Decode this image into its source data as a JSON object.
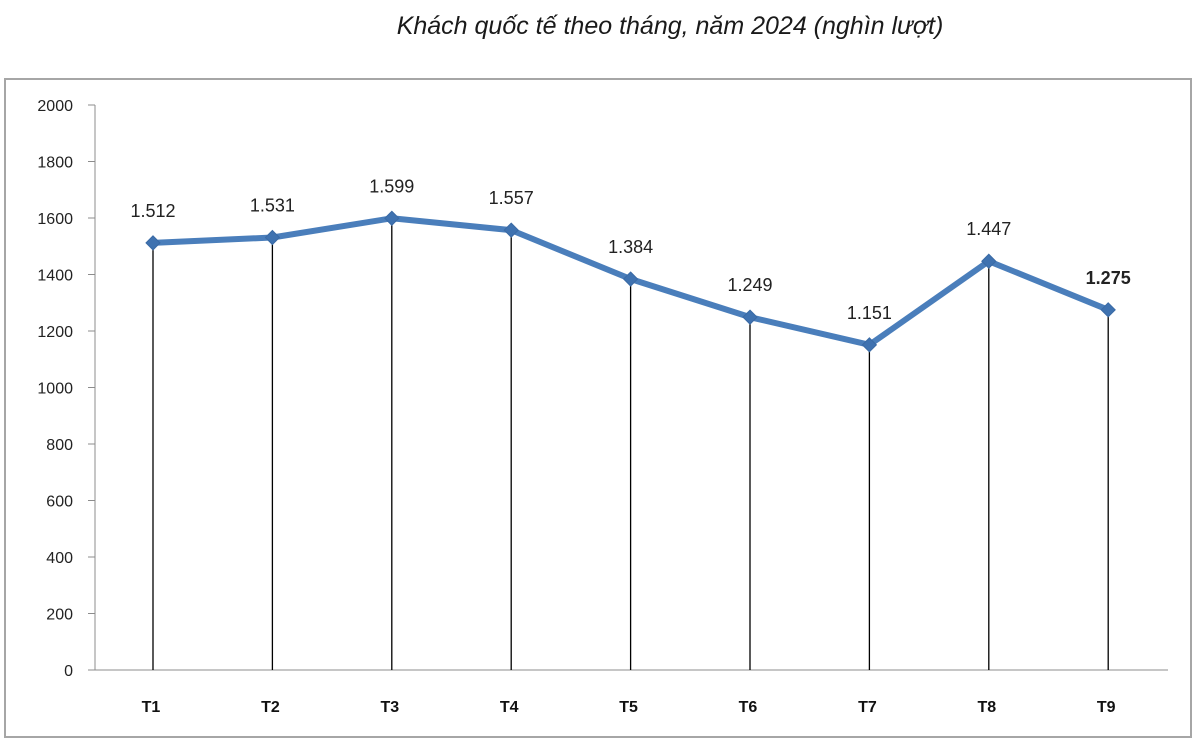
{
  "chart_data": {
    "type": "line",
    "title": "Khách quốc tế theo tháng, năm 2024 (nghìn lượt)",
    "categories": [
      "T1",
      "T2",
      "T3",
      "T4",
      "T5",
      "T6",
      "T7",
      "T8",
      "T9"
    ],
    "series": [
      {
        "values": [
          1512,
          1531,
          1599,
          1557,
          1384,
          1249,
          1151,
          1447,
          1275
        ],
        "color": "#4a7ebb"
      }
    ],
    "data_labels": [
      "1.512",
      "1.531",
      "1.599",
      "1.557",
      "1.384",
      "1.249",
      "1.151",
      "1.447",
      "1.275"
    ],
    "emphasized_label_index": 8,
    "ylim": [
      0,
      2000
    ],
    "yticks": [
      0,
      200,
      400,
      600,
      800,
      1000,
      1200,
      1400,
      1600,
      1800,
      2000
    ],
    "drop_lines": true,
    "grid": false,
    "legend": "none",
    "marker": "diamond"
  }
}
